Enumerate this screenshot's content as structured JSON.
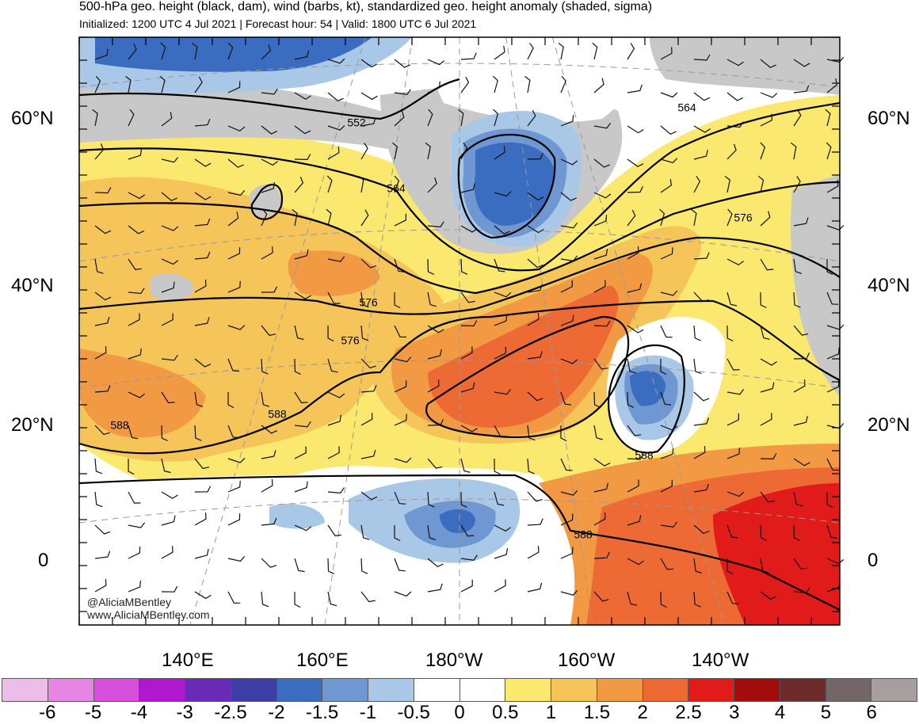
{
  "header": {
    "title": "500-hPa geo. height (black, dam), wind (barbs, kt), standardized geo. height anomaly (shaded, sigma)",
    "subtitle": "Initialized: 1200 UTC 4 Jul 2021 | Forecast hour: 54 | Valid: 1800 UTC 6 Jul 2021"
  },
  "latitude_labels": [
    "60°N",
    "40°N",
    "20°N",
    "0"
  ],
  "longitude_labels": [
    "140°E",
    "160°E",
    "180°W",
    "160°W",
    "140°W"
  ],
  "contour_labels": [
    "552",
    "564",
    "564",
    "576",
    "576",
    "576",
    "588",
    "588",
    "588",
    "588"
  ],
  "credit": {
    "handle": "@AliciaMBentley",
    "website": "www.AliciaMBentley.com"
  },
  "colorbar": {
    "labels": [
      "-6",
      "-5",
      "-4",
      "-3",
      "-2.5",
      "-2",
      "-1.5",
      "-1",
      "-0.5",
      "0",
      "0.5",
      "1",
      "1.5",
      "2",
      "2.5",
      "3",
      "4",
      "5",
      "6"
    ],
    "colors": [
      "#ebbde8",
      "#e685e3",
      "#d84fdc",
      "#b018d0",
      "#6a2ab8",
      "#3d3da8",
      "#3a6cc0",
      "#6f97d2",
      "#a9c8e7",
      "#ffffff",
      "#ffffff",
      "#fbe86e",
      "#f5c55a",
      "#f29a43",
      "#ee6a35",
      "#e11a1a",
      "#a30c0c",
      "#6e2b2b",
      "#736666",
      "#a99e9e"
    ]
  },
  "map_colors": {
    "ocean_neutral": "#ffffff",
    "anomaly_pos_0_5": "#fbe86e",
    "anomaly_pos_1": "#f5c55a",
    "anomaly_pos_1_5": "#f29a43",
    "anomaly_pos_2": "#ee6a35",
    "anomaly_pos_2_5": "#e11a1a",
    "anomaly_neg_0_5": "#a9c8e7",
    "anomaly_neg_1": "#6f97d2",
    "anomaly_neg_1_5": "#3a6cc0",
    "land_gray": "#c8c8c8"
  }
}
